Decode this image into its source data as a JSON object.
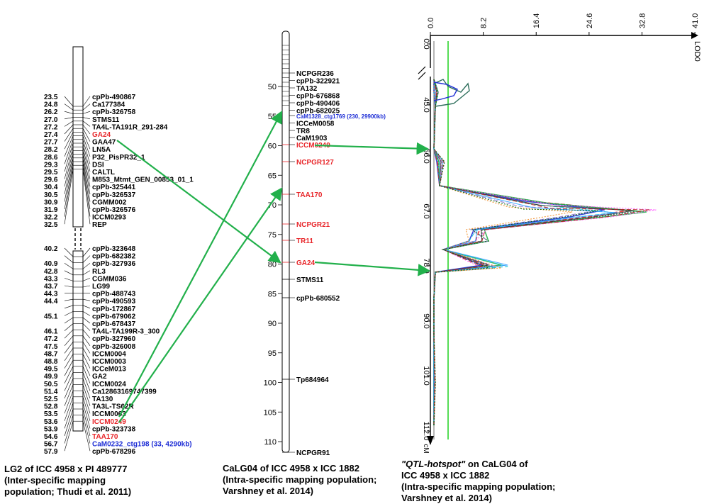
{
  "map1": {
    "markers": [
      {
        "pos": "23.5",
        "name": "cpPb-490867"
      },
      {
        "pos": "24.8",
        "name": "Ca177384"
      },
      {
        "pos": "26.2",
        "name": "cpPb-326758"
      },
      {
        "pos": "27.0",
        "name": "STMS11"
      },
      {
        "pos": "27.2",
        "name": "TA4L-TA191R_291-284"
      },
      {
        "pos": "27.4",
        "name": "GA24",
        "color": "#e8262a"
      },
      {
        "pos": "27.7",
        "name": "GAA47"
      },
      {
        "pos": "28.2",
        "name": "LN5A"
      },
      {
        "pos": "28.6",
        "name": "P32_PisPR32_1"
      },
      {
        "pos": "29.3",
        "name": "DSI"
      },
      {
        "pos": "29.5",
        "name": "CALTL"
      },
      {
        "pos": "29.6",
        "name": "M853_Mtmt_GEN_00853_01_1"
      },
      {
        "pos": "30.4",
        "name": "cpPb-325441"
      },
      {
        "pos": "30.5",
        "name": "cpPb-326537"
      },
      {
        "pos": "30.9",
        "name": "CGMM002"
      },
      {
        "pos": "31.9",
        "name": "cpPb-326576"
      },
      {
        "pos": "32.2",
        "name": "ICCM0293"
      },
      {
        "pos": "32.5",
        "name": "REP"
      },
      {
        "pos": "40.2",
        "name": "cpPb-323648"
      },
      {
        "pos": "",
        "name": "cpPb-682382"
      },
      {
        "pos": "40.9",
        "name": "cpPb-327936"
      },
      {
        "pos": "42.8",
        "name": "RL3"
      },
      {
        "pos": "43.3",
        "name": "CGMM036"
      },
      {
        "pos": "43.7",
        "name": "LG99"
      },
      {
        "pos": "44.3",
        "name": "cpPb-488743"
      },
      {
        "pos": "44.4",
        "name": "cpPb-490593"
      },
      {
        "pos": "",
        "name": "cpPb-172867"
      },
      {
        "pos": "45.1",
        "name": "cpPb-679062"
      },
      {
        "pos": "",
        "name": "cpPb-678437"
      },
      {
        "pos": "46.1",
        "name": "TA4L-TA199R-3_300"
      },
      {
        "pos": "47.2",
        "name": "cpPb-327960"
      },
      {
        "pos": "47.5",
        "name": "cpPb-326008"
      },
      {
        "pos": "48.7",
        "name": "ICCM0004"
      },
      {
        "pos": "48.8",
        "name": "ICCM0003"
      },
      {
        "pos": "49.5",
        "name": "ICCeM013"
      },
      {
        "pos": "49.9",
        "name": "GA2"
      },
      {
        "pos": "50.5",
        "name": "ICCM0024"
      },
      {
        "pos": "51.4",
        "name": "Ca12863169747399"
      },
      {
        "pos": "52.5",
        "name": "TA130"
      },
      {
        "pos": "52.8",
        "name": "TA3L-TS62R"
      },
      {
        "pos": "53.5",
        "name": "ICCM0063"
      },
      {
        "pos": "53.6",
        "name": "ICCM0249",
        "color": "#e8262a"
      },
      {
        "pos": "53.9",
        "name": "cpPb-323738"
      },
      {
        "pos": "54.6",
        "name": "TAA170",
        "color": "#e8262a"
      },
      {
        "pos": "56.7",
        "name": "CaM0232_ctg198 (33, 4290kb)",
        "color": "#1f2fd6"
      },
      {
        "pos": "57.9",
        "name": "cpPb-678296"
      }
    ],
    "caption": [
      "LG2 of ICC 4958 x PI 489777",
      "(Inter-specific mapping",
      "population; Thudi et al. 2011)"
    ]
  },
  "map2": {
    "ticks": [
      "50",
      "55",
      "60",
      "65",
      "70",
      "75",
      "80",
      "85",
      "90",
      "95",
      "100",
      "105",
      "110"
    ],
    "markers": [
      {
        "name": "NCPGR236"
      },
      {
        "name": "cpPb-322921"
      },
      {
        "name": "TA132"
      },
      {
        "name": "cpPb-676868"
      },
      {
        "name": "cpPb-490406"
      },
      {
        "name": "cpPb-682025"
      },
      {
        "name": "CaM1328_ctg1769 (230, 29900kb)",
        "color": "#1f2fd6"
      },
      {
        "name": "ICCeM0058"
      },
      {
        "name": "TR8"
      },
      {
        "name": "CaM1903"
      },
      {
        "name": "ICCM0249",
        "color": "#e8262a"
      },
      {
        "name": "NCPGR127",
        "color": "#e8262a"
      },
      {
        "name": "TAA170",
        "color": "#e8262a"
      },
      {
        "name": "NCPGR21",
        "color": "#e8262a"
      },
      {
        "name": "TR11",
        "color": "#e8262a"
      },
      {
        "name": "GA24",
        "color": "#e8262a"
      },
      {
        "name": "STMS11"
      },
      {
        "name": "cpPb-680552"
      },
      {
        "name": "Tp684964"
      },
      {
        "name": "NCPGR91"
      }
    ],
    "caption": [
      "CaLG04 of ICC 4958 x ICC 1882",
      "(Intra-specific mapping population;",
      " Varshney et al. 2014)"
    ]
  },
  "qtl": {
    "lod_ticks": [
      "0.0",
      "8.2",
      "16.4",
      "24.6",
      "32.8",
      "41.0"
    ],
    "lod_label": "LOD0",
    "cm_ticks": [
      "0.0",
      "45.0",
      "56.0",
      "67.0",
      "78.0",
      "90.0",
      "101.0",
      "112.0"
    ],
    "cm_label": "cM",
    "caption_quote_title": "\"QTL-hotspot\"",
    "caption_rest": " on CaLG04 of",
    "caption": [
      "ICC 4958 x ICC 1882",
      "(Intra-specific mapping population;",
      " Varshney et al. 2014)"
    ]
  },
  "colors": {
    "link": "#22b04b",
    "red": "#e8262a",
    "blue": "#1f2fd6",
    "green_line": "#2bd42b"
  }
}
